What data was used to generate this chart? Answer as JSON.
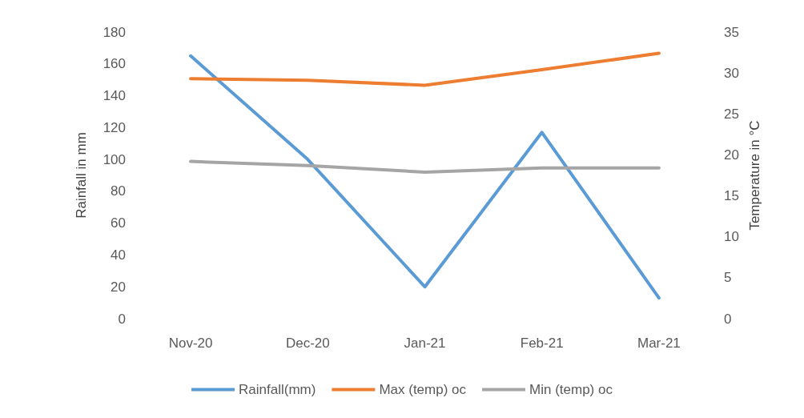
{
  "chart_data": {
    "type": "line",
    "ylabel": "Rainfall in mm",
    "y2label": "Temperature in °C",
    "categories": [
      "Nov-20",
      "Dec-20",
      "Jan-21",
      "Feb-21",
      "Mar-21"
    ],
    "series": [
      {
        "name": "Rainfall(mm)",
        "color": "#5b9bd5",
        "values": [
          165,
          100,
          20,
          117,
          13
        ]
      },
      {
        "name": "Max (temp) oc",
        "color": "#ed7d31",
        "values": [
          29.3,
          29.1,
          28.5,
          30.4,
          32.4
        ],
        "axis": "y2"
      },
      {
        "name": "Min (temp) oc",
        "color": "#a5a5a5",
        "values": [
          19.2,
          18.7,
          17.9,
          18.4,
          18.4
        ],
        "axis": "y2"
      }
    ],
    "ylim": [
      0,
      180
    ],
    "yticks": [
      0,
      20,
      40,
      60,
      80,
      100,
      120,
      140,
      160,
      180
    ],
    "y2lim": [
      0,
      35
    ],
    "y2ticks": [
      0,
      5,
      10,
      15,
      20,
      25,
      30,
      35
    ],
    "grid": false,
    "legend": "bottom",
    "marker": "none",
    "line_style": "solid"
  }
}
